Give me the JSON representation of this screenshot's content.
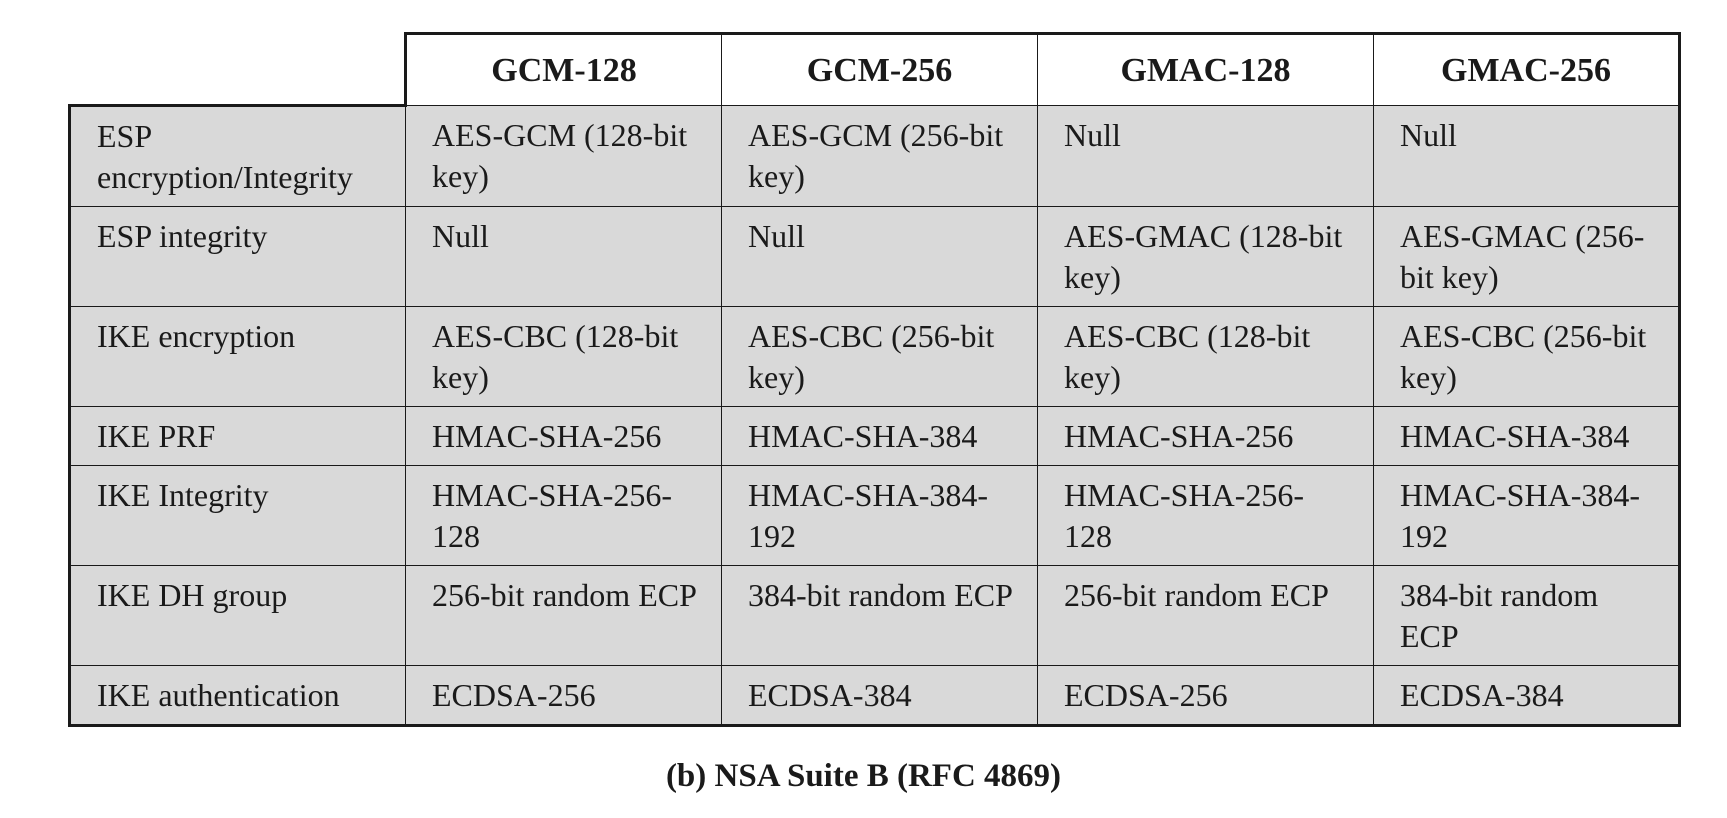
{
  "table": {
    "columns": [
      "GCM-128",
      "GCM-256",
      "GMAC-128",
      "GMAC-256"
    ],
    "rows": [
      {
        "label": "ESP encryption/Integrity",
        "cells": [
          "AES-GCM (128-bit key)",
          "AES-GCM (256-bit key)",
          "Null",
          "Null"
        ]
      },
      {
        "label": "ESP integrity",
        "cells": [
          "Null",
          "Null",
          "AES-GMAC (128-bit key)",
          "AES-GMAC (256-bit key)"
        ]
      },
      {
        "label": "IKE encryption",
        "cells": [
          "AES-CBC (128-bit key)",
          "AES-CBC (256-bit key)",
          "AES-CBC (128-bit key)",
          "AES-CBC (256-bit key)"
        ]
      },
      {
        "label": "IKE PRF",
        "cells": [
          "HMAC-SHA-256",
          "HMAC-SHA-384",
          "HMAC-SHA-256",
          "HMAC-SHA-384"
        ]
      },
      {
        "label": "IKE Integrity",
        "cells": [
          "HMAC-SHA-256-128",
          "HMAC-SHA-384-192",
          "HMAC-SHA-256-128",
          "HMAC-SHA-384-192"
        ]
      },
      {
        "label": "IKE DH group",
        "cells": [
          "256-bit random ECP",
          "384-bit random ECP",
          "256-bit random ECP",
          "384-bit random ECP"
        ]
      },
      {
        "label": "IKE authentication",
        "cells": [
          "ECDSA-256",
          "ECDSA-384",
          "ECDSA-256",
          "ECDSA-384"
        ]
      }
    ]
  },
  "caption": "(b) NSA Suite B (RFC 4869)"
}
